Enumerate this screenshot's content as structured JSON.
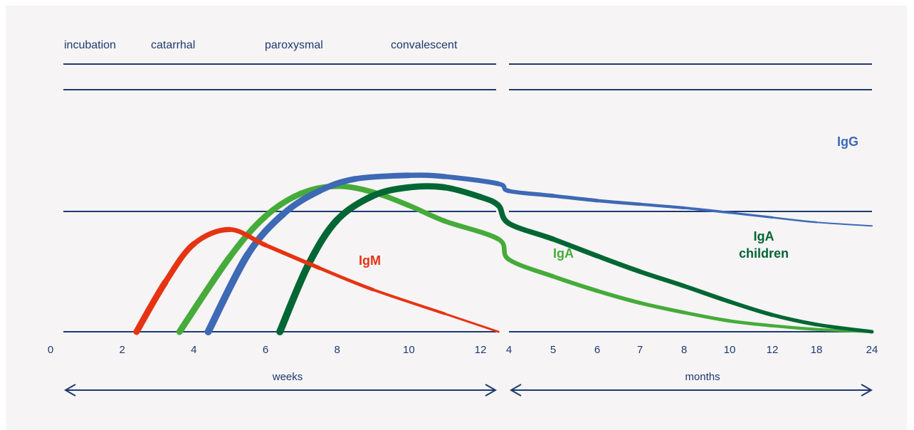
{
  "chart_data": {
    "type": "line",
    "phases": [
      "incubation",
      "catarrhal",
      "paroxysmal",
      "convalescent"
    ],
    "x_ticks_weeks": [
      "0",
      "2",
      "4",
      "6",
      "8",
      "10",
      "12"
    ],
    "x_ticks_months": [
      "4",
      "5",
      "6",
      "7",
      "8",
      "10",
      "12",
      "18",
      "24"
    ],
    "xlabel_weeks": "weeks",
    "xlabel_months": "months",
    "y_levels": 3,
    "series": [
      {
        "name": "IgM",
        "color": "#e63312",
        "points": [
          [
            2.4,
            0
          ],
          [
            3.2,
            0.41
          ],
          [
            4.0,
            0.73
          ],
          [
            5.0,
            0.85
          ],
          [
            6.0,
            0.72
          ],
          [
            7.5,
            0.53
          ],
          [
            9.0,
            0.35
          ],
          [
            11.0,
            0.15
          ],
          [
            12.5,
            0.0
          ]
        ]
      },
      {
        "name": "IgA",
        "color": "#45ab3a",
        "points": [
          [
            3.6,
            0
          ],
          [
            5.0,
            0.62
          ],
          [
            6.0,
            0.96
          ],
          [
            7.0,
            1.15
          ],
          [
            8.0,
            1.21
          ],
          [
            9.0,
            1.16
          ],
          [
            10.0,
            1.05
          ],
          [
            11.0,
            0.92
          ],
          [
            12.5,
            0.77
          ],
          [
            "4m",
            0.6
          ],
          [
            "5m",
            0.46
          ],
          [
            "6m",
            0.34
          ],
          [
            "7m",
            0.24
          ],
          [
            "8m",
            0.16
          ],
          [
            "10m",
            0.09
          ],
          [
            "12m",
            0.05
          ],
          [
            "18m",
            0.02
          ],
          [
            "24m",
            0.0
          ]
        ]
      },
      {
        "name": "IgG",
        "color": "#3d69b5",
        "points": [
          [
            4.4,
            0
          ],
          [
            5.5,
            0.64
          ],
          [
            6.5,
            0.98
          ],
          [
            7.5,
            1.17
          ],
          [
            8.5,
            1.27
          ],
          [
            10.0,
            1.3
          ],
          [
            11.0,
            1.29
          ],
          [
            12.5,
            1.23
          ],
          [
            "4m",
            1.17
          ],
          [
            "5m",
            1.13
          ],
          [
            "6m",
            1.09
          ],
          [
            "7m",
            1.06
          ],
          [
            "8m",
            1.03
          ],
          [
            "10m",
            0.99
          ],
          [
            "12m",
            0.95
          ],
          [
            "18m",
            0.91
          ],
          [
            "24m",
            0.88
          ]
        ]
      },
      {
        "name": "IgA children",
        "label_lines": [
          "IgA",
          "children"
        ],
        "color": "#006633",
        "points": [
          [
            6.4,
            0
          ],
          [
            7.2,
            0.56
          ],
          [
            8.0,
            0.93
          ],
          [
            9.0,
            1.13
          ],
          [
            10.0,
            1.2
          ],
          [
            11.0,
            1.2
          ],
          [
            12.0,
            1.12
          ],
          [
            12.5,
            1.05
          ],
          [
            "4m",
            0.9
          ],
          [
            "5m",
            0.77
          ],
          [
            "6m",
            0.63
          ],
          [
            "7m",
            0.5
          ],
          [
            "8m",
            0.38
          ],
          [
            "10m",
            0.25
          ],
          [
            "12m",
            0.14
          ],
          [
            "18m",
            0.06
          ],
          [
            "24m",
            0.0
          ]
        ]
      }
    ]
  }
}
